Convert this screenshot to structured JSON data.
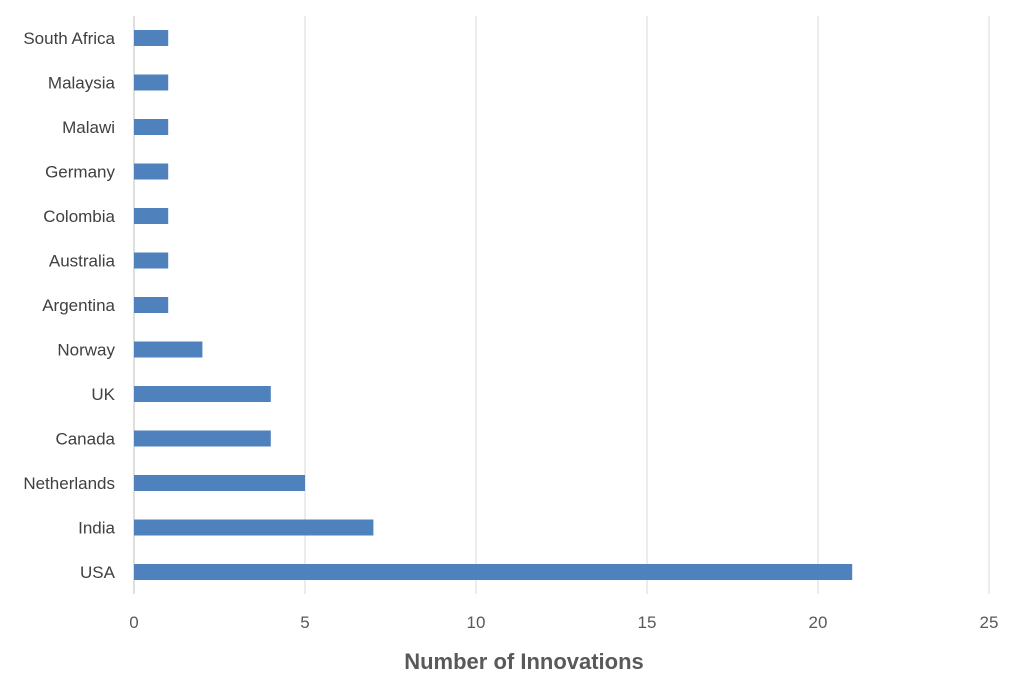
{
  "chart_data": {
    "type": "bar",
    "orientation": "horizontal",
    "categories": [
      "USA",
      "India",
      "Netherlands",
      "Canada",
      "UK",
      "Norway",
      "Argentina",
      "Australia",
      "Colombia",
      "Germany",
      "Malawi",
      "Malaysia",
      "South Africa"
    ],
    "values": [
      21,
      7,
      5,
      4,
      4,
      2,
      1,
      1,
      1,
      1,
      1,
      1,
      1
    ],
    "xlabel": "Number of Innovations",
    "ylabel": "",
    "title": "",
    "xlim": [
      0,
      25
    ],
    "xticks": [
      "0",
      "5",
      "10",
      "15",
      "20",
      "25"
    ],
    "grid": "vertical",
    "legend": "none",
    "bar_color": "#4F81BD",
    "grid_color": "#D9D9D9"
  }
}
